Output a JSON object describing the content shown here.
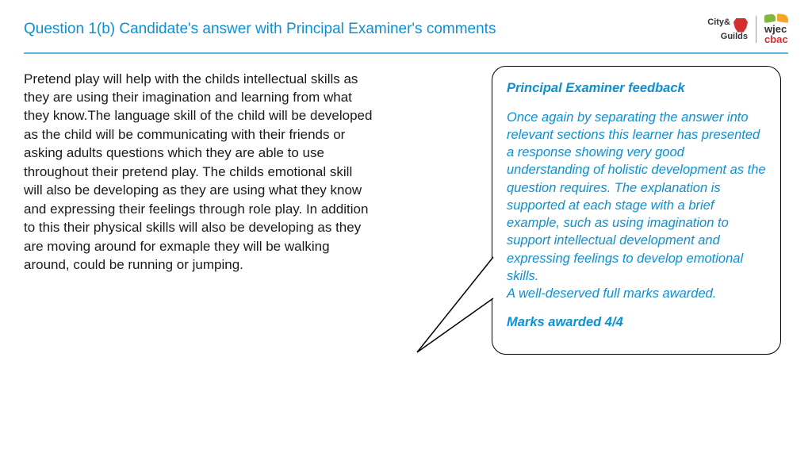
{
  "header": {
    "title": "Question 1(b) Candidate's answer with Principal Examiner's comments",
    "logo_city": "City",
    "logo_guilds": "Guilds",
    "logo_amp": "&",
    "logo_wjec": "wjec",
    "logo_cbac": "cbac"
  },
  "answer": {
    "text": "Pretend play will help with the childs intellectual skills as they are using their imagination and learning from what they know.The language skill of the child will be developed as the child will be communicating with their friends or asking adults questions which they are able to use throughout their pretend play. The childs emotional skill will also be developing as they are using what they know and expressing their feelings through role play. In addition to this their physical skills will also be developing as they are moving around for exmaple they will be walking around, could be running or jumping."
  },
  "feedback": {
    "title": "Principal Examiner feedback",
    "body": "Once again by separating the answer into relevant sections this learner has presented a response showing very good understanding of holistic development as the question requires. The explanation is supported at each stage with a brief example, such as using imagination to support intellectual development and expressing feelings to develop emotional skills.\nA well-deserved full marks awarded.",
    "marks": "Marks awarded 4/4"
  },
  "colors": {
    "accent": "#0d8fd1",
    "rule": "#5fb5db",
    "text": "#1a1a1a",
    "border": "#000000",
    "bg": "#ffffff"
  }
}
